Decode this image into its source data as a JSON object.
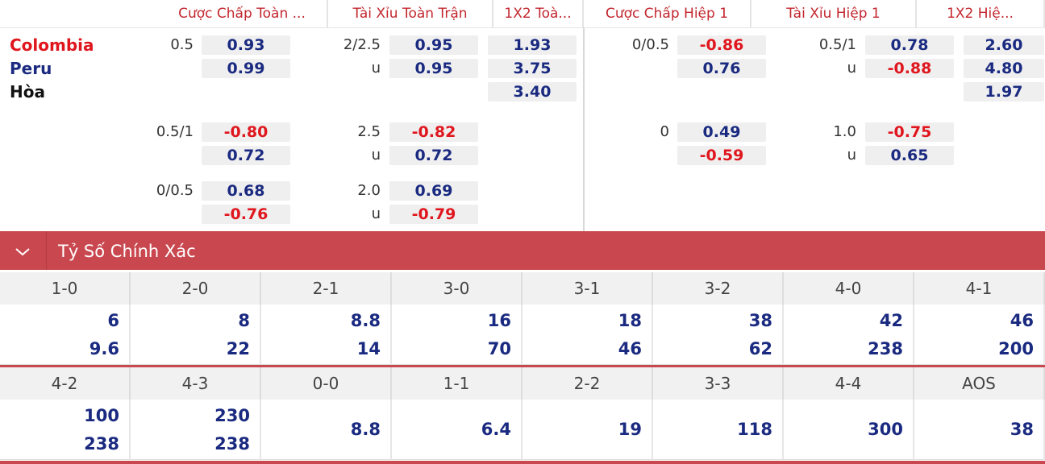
{
  "header": {
    "columns": [
      "Cược Chấp Toàn ...",
      "Tài Xỉu Toàn Trận",
      "1X2 Toà...",
      "Cược Chấp Hiệp 1",
      "Tài Xỉu Hiệp 1",
      "1X2 Hiệ..."
    ]
  },
  "teams": [
    "Colombia",
    "Peru",
    "Hòa"
  ],
  "odds": {
    "groups": [
      {
        "full_handicap": {
          "line": "0.5",
          "odds": [
            "0.93",
            "0.99"
          ]
        },
        "full_ou": {
          "line": "2/2.5",
          "under": "u",
          "odds": [
            "0.95",
            "0.95"
          ]
        },
        "full_1x2": [
          "1.93",
          "3.75",
          "3.40"
        ],
        "half_handicap": {
          "line": "0/0.5",
          "odds": [
            "-0.86",
            "0.76"
          ]
        },
        "half_ou": {
          "line": "0.5/1",
          "under": "u",
          "odds": [
            "0.78",
            "-0.88"
          ]
        },
        "half_1x2": [
          "2.60",
          "4.80",
          "1.97"
        ]
      },
      {
        "full_handicap": {
          "line": "0.5/1",
          "odds": [
            "-0.80",
            "0.72"
          ]
        },
        "full_ou": {
          "line": "2.5",
          "under": "u",
          "odds": [
            "-0.82",
            "0.72"
          ]
        },
        "half_handicap": {
          "line": "0",
          "odds": [
            "0.49",
            "-0.59"
          ]
        },
        "half_ou": {
          "line": "1.0",
          "under": "u",
          "odds": [
            "-0.75",
            "0.65"
          ]
        }
      },
      {
        "full_handicap": {
          "line": "0/0.5",
          "odds": [
            "0.68",
            "-0.76"
          ]
        },
        "full_ou": {
          "line": "2.0",
          "under": "u",
          "odds": [
            "0.69",
            "-0.79"
          ]
        }
      }
    ]
  },
  "correct_score": {
    "title": "Tỷ Số Chính Xác",
    "rows": [
      {
        "cells": [
          {
            "score": "1-0",
            "odds": [
              "6",
              "9.6"
            ]
          },
          {
            "score": "2-0",
            "odds": [
              "8",
              "22"
            ]
          },
          {
            "score": "2-1",
            "odds": [
              "8.8",
              "14"
            ]
          },
          {
            "score": "3-0",
            "odds": [
              "16",
              "70"
            ]
          },
          {
            "score": "3-1",
            "odds": [
              "18",
              "46"
            ]
          },
          {
            "score": "3-2",
            "odds": [
              "38",
              "62"
            ]
          },
          {
            "score": "4-0",
            "odds": [
              "42",
              "238"
            ]
          },
          {
            "score": "4-1",
            "odds": [
              "46",
              "200"
            ]
          }
        ]
      },
      {
        "cells": [
          {
            "score": "4-2",
            "odds": [
              "100",
              "238"
            ]
          },
          {
            "score": "4-3",
            "odds": [
              "230",
              "238"
            ]
          },
          {
            "score": "0-0",
            "odds": [
              "8.8"
            ]
          },
          {
            "score": "1-1",
            "odds": [
              "6.4"
            ]
          },
          {
            "score": "2-2",
            "odds": [
              "19"
            ]
          },
          {
            "score": "3-3",
            "odds": [
              "118"
            ]
          },
          {
            "score": "4-4",
            "odds": [
              "300"
            ]
          },
          {
            "score": "AOS",
            "odds": [
              "38"
            ]
          }
        ]
      }
    ]
  }
}
